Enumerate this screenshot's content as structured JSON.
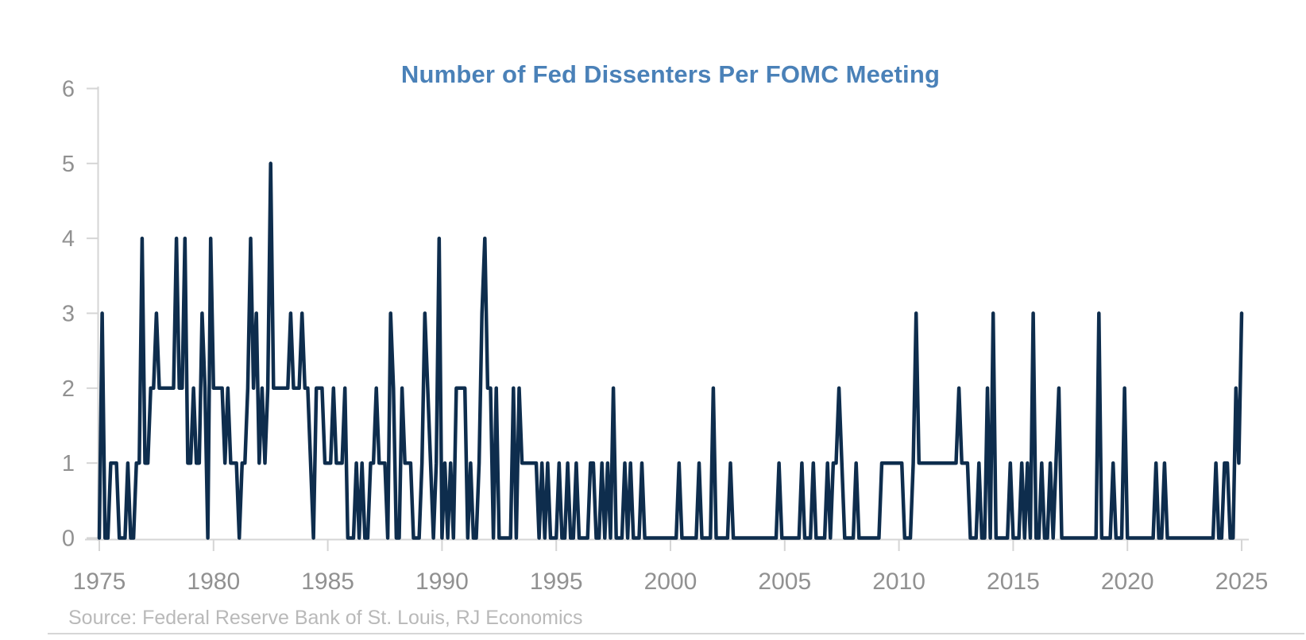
{
  "chart_data": {
    "type": "line",
    "title": "Number of Fed Dissenters Per FOMC Meeting",
    "source_note": "Source: Federal Reserve Bank of St. Louis, RJ Economics",
    "xlabel": "",
    "ylabel": "",
    "xlim": [
      1975,
      2025
    ],
    "ylim": [
      0,
      6
    ],
    "x_ticks": [
      1975,
      1980,
      1985,
      1990,
      1995,
      2000,
      2005,
      2010,
      2015,
      2020,
      2025
    ],
    "y_ticks": [
      0,
      1,
      2,
      3,
      4,
      5,
      6
    ],
    "grid": "off",
    "legend": "none",
    "line_color": "#0e2d4d",
    "axis_color": "#d5d5d5",
    "tick_label_color": "#919191",
    "title_color": "#4a81b8",
    "x_start_year": 1975,
    "points_per_year": 8,
    "x_rule": "x[i] = x_start_year + i / points_per_year (one value per FOMC meeting slot)",
    "values": [
      0,
      3,
      0,
      0,
      1,
      1,
      1,
      0,
      0,
      0,
      1,
      0,
      0,
      1,
      1,
      4,
      1,
      1,
      2,
      2,
      3,
      2,
      2,
      2,
      2,
      2,
      2,
      4,
      2,
      2,
      4,
      1,
      1,
      2,
      1,
      1,
      3,
      2,
      0,
      4,
      2,
      2,
      2,
      2,
      1,
      2,
      1,
      1,
      1,
      0,
      1,
      1,
      2,
      4,
      2,
      3,
      1,
      2,
      1,
      2,
      5,
      2,
      2,
      2,
      2,
      2,
      2,
      3,
      2,
      2,
      2,
      3,
      2,
      2,
      1,
      0,
      2,
      2,
      2,
      1,
      1,
      1,
      2,
      1,
      1,
      1,
      2,
      0,
      0,
      0,
      1,
      0,
      1,
      0,
      0,
      1,
      1,
      2,
      1,
      1,
      1,
      0,
      3,
      2,
      0,
      0,
      2,
      1,
      1,
      1,
      0,
      0,
      0,
      1,
      3,
      2,
      1,
      0,
      1,
      4,
      0,
      1,
      0,
      1,
      0,
      2,
      2,
      2,
      2,
      0,
      1,
      0,
      0,
      1,
      3,
      4,
      2,
      2,
      0,
      2,
      0,
      0,
      0,
      0,
      0,
      2,
      0,
      2,
      1,
      1,
      1,
      1,
      1,
      1,
      0,
      1,
      0,
      1,
      0,
      0,
      0,
      1,
      0,
      0,
      1,
      0,
      0,
      1,
      0,
      0,
      0,
      0,
      1,
      1,
      0,
      0,
      1,
      0,
      1,
      0,
      2,
      0,
      0,
      0,
      1,
      0,
      1,
      0,
      0,
      0,
      1,
      0,
      0,
      0,
      0,
      0,
      0,
      0,
      0,
      0,
      0,
      0,
      0,
      1,
      0,
      0,
      0,
      0,
      0,
      0,
      1,
      0,
      0,
      0,
      0,
      2,
      0,
      0,
      0,
      0,
      0,
      1,
      0,
      0,
      0,
      0,
      0,
      0,
      0,
      0,
      0,
      0,
      0,
      0,
      0,
      0,
      0,
      0,
      1,
      0,
      0,
      0,
      0,
      0,
      0,
      0,
      1,
      0,
      0,
      0,
      1,
      0,
      0,
      0,
      0,
      1,
      0,
      1,
      1,
      2,
      1,
      0,
      0,
      0,
      0,
      1,
      0,
      0,
      0,
      0,
      0,
      0,
      0,
      0,
      1,
      1,
      1,
      1,
      1,
      1,
      1,
      1,
      0,
      0,
      0,
      1,
      3,
      1,
      1,
      1,
      1,
      1,
      1,
      1,
      1,
      1,
      1,
      1,
      1,
      1,
      1,
      2,
      1,
      1,
      1,
      0,
      0,
      0,
      1,
      0,
      0,
      2,
      0,
      3,
      0,
      0,
      0,
      0,
      0,
      1,
      0,
      0,
      0,
      1,
      0,
      1,
      0,
      3,
      0,
      0,
      1,
      0,
      0,
      1,
      0,
      1,
      2,
      0,
      0,
      0,
      0,
      0,
      0,
      0,
      0,
      0,
      0,
      0,
      0,
      0,
      3,
      0,
      0,
      0,
      0,
      1,
      0,
      0,
      0,
      2,
      0,
      0,
      0,
      0,
      0,
      0,
      0,
      0,
      0,
      0,
      1,
      0,
      0,
      1,
      0,
      0,
      0,
      0,
      0,
      0,
      0,
      0,
      0,
      0,
      0,
      0,
      0,
      0,
      0,
      0,
      0,
      1,
      0,
      0,
      1,
      1,
      0,
      0,
      2,
      1,
      3
    ]
  }
}
